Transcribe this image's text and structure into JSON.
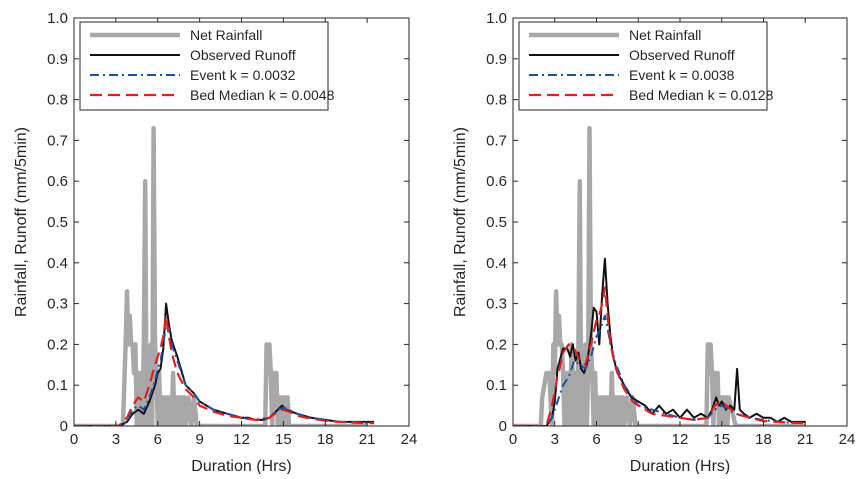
{
  "chart_data": [
    {
      "type": "line",
      "xlabel": "Duration (Hrs)",
      "ylabel": "Rainfall, Runoff (mm/5min)",
      "xlim": [
        0,
        24
      ],
      "ylim": [
        0,
        1.0
      ],
      "xticks": [
        0,
        3,
        6,
        9,
        12,
        15,
        18,
        21,
        24
      ],
      "xtick_labels": [
        "0",
        "3",
        "6",
        "9",
        "12",
        "15",
        "18",
        "21",
        "24"
      ],
      "yticks": [
        0,
        0.1,
        0.2,
        0.3,
        0.4,
        0.5,
        0.6,
        0.7,
        0.8,
        0.9,
        1.0
      ],
      "ytick_labels": [
        "0",
        "0.1",
        "0.2",
        "0.3",
        "0.4",
        "0.5",
        "0.6",
        "0.7",
        "0.8",
        "0.9",
        "1.0"
      ],
      "grid": false,
      "legend_position": "top-left",
      "series": [
        {
          "name": "Net Rainfall",
          "color": "#a8a8a8",
          "style": "solid-thick",
          "x": [
            0,
            3.5,
            3.7,
            3.8,
            3.9,
            4.0,
            4.1,
            4.2,
            4.3,
            4.4,
            4.5,
            4.6,
            4.7,
            4.8,
            4.9,
            5.0,
            5.1,
            5.2,
            5.3,
            5.4,
            5.5,
            5.6,
            5.7,
            5.8,
            5.9,
            6.0,
            6.1,
            6.2,
            6.3,
            6.4,
            6.5,
            6.6,
            6.7,
            6.8,
            6.9,
            7.0,
            7.1,
            7.2,
            7.3,
            7.4,
            7.5,
            7.6,
            7.7,
            7.8,
            7.9,
            8.0,
            8.2,
            8.4,
            8.6,
            8.8,
            13.7,
            13.8,
            13.9,
            14.0,
            14.1,
            14.2,
            14.3,
            14.4,
            14.5,
            14.6,
            14.7,
            14.8,
            14.9,
            15.0,
            15.1,
            15.2,
            15.3,
            15.4,
            15.5,
            16,
            21
          ],
          "y": [
            0,
            0,
            0.2,
            0.33,
            0.2,
            0.27,
            0.2,
            0.2,
            0.13,
            0.2,
            0,
            0.13,
            0,
            0.13,
            0,
            0.2,
            0.6,
            0,
            0.13,
            0,
            0.2,
            0,
            0.73,
            0.2,
            0.13,
            0,
            0.13,
            0,
            0.07,
            0,
            0.07,
            0,
            0.07,
            0,
            0.07,
            0,
            0.13,
            0,
            0.07,
            0,
            0.07,
            0,
            0.07,
            0,
            0.07,
            0,
            0.07,
            0,
            0.07,
            0,
            0,
            0.2,
            0.13,
            0.2,
            0.13,
            0,
            0.13,
            0.07,
            0.13,
            0,
            0.07,
            0,
            0.07,
            0,
            0.07,
            0,
            0.07,
            0,
            0,
            0,
            0
          ]
        },
        {
          "name": "Observed Runoff",
          "color": "#111111",
          "style": "solid",
          "x": [
            0,
            3.2,
            3.8,
            4.2,
            4.6,
            5.0,
            5.4,
            5.8,
            6.0,
            6.2,
            6.4,
            6.6,
            6.8,
            7.0,
            7.4,
            8.0,
            8.6,
            9.0,
            10.0,
            11.0,
            12.0,
            12.5,
            13.0,
            13.5,
            14.0,
            14.3,
            14.6,
            14.9,
            15.2,
            16.0,
            17.0,
            18.0,
            19.0,
            20.0,
            21.0,
            21.5
          ],
          "y": [
            0,
            0,
            0.01,
            0.03,
            0.04,
            0.03,
            0.06,
            0.1,
            0.13,
            0.14,
            0.19,
            0.3,
            0.25,
            0.21,
            0.17,
            0.1,
            0.08,
            0.06,
            0.04,
            0.03,
            0.02,
            0.02,
            0.015,
            0.015,
            0.02,
            0.03,
            0.04,
            0.05,
            0.04,
            0.03,
            0.02,
            0.015,
            0.01,
            0.01,
            0.01,
            0.01
          ]
        },
        {
          "name": "Event k = 0.0032",
          "color": "#1f4ea5",
          "style": "dashdot",
          "x": [
            0,
            3.2,
            3.8,
            4.2,
            4.6,
            5.0,
            5.4,
            5.8,
            6.0,
            6.2,
            6.4,
            6.6,
            6.8,
            7.0,
            7.4,
            8.0,
            8.6,
            9.0,
            10.0,
            11.0,
            12.0,
            13.0,
            14.0,
            14.6,
            15.0,
            15.4,
            16.0,
            17.0,
            18.0,
            19.0,
            20.0,
            21.0,
            21.5
          ],
          "y": [
            0,
            0,
            0.01,
            0.04,
            0.05,
            0.04,
            0.07,
            0.11,
            0.14,
            0.16,
            0.2,
            0.25,
            0.24,
            0.2,
            0.16,
            0.1,
            0.08,
            0.06,
            0.04,
            0.03,
            0.02,
            0.015,
            0.02,
            0.04,
            0.045,
            0.04,
            0.03,
            0.02,
            0.015,
            0.01,
            0.01,
            0.008,
            0.008
          ]
        },
        {
          "name": "Bed Median k = 0.0048",
          "color": "#e02020",
          "style": "dashed",
          "x": [
            0,
            3.2,
            3.8,
            4.2,
            4.6,
            5.0,
            5.4,
            5.8,
            6.0,
            6.2,
            6.4,
            6.6,
            6.8,
            7.0,
            7.4,
            8.0,
            8.6,
            9.0,
            10.0,
            11.0,
            12.0,
            13.0,
            14.0,
            14.6,
            15.0,
            15.4,
            16.0,
            17.0,
            18.0,
            19.0,
            20.0,
            21.0,
            21.5
          ],
          "y": [
            0,
            0,
            0.02,
            0.05,
            0.07,
            0.06,
            0.1,
            0.15,
            0.17,
            0.19,
            0.22,
            0.27,
            0.22,
            0.18,
            0.13,
            0.09,
            0.07,
            0.05,
            0.035,
            0.025,
            0.02,
            0.015,
            0.02,
            0.035,
            0.04,
            0.035,
            0.025,
            0.018,
            0.013,
            0.01,
            0.008,
            0.007,
            0.007
          ]
        }
      ]
    },
    {
      "type": "line",
      "xlabel": "Duration (Hrs)",
      "ylabel": "Rainfall, Runoff (mm/5min)",
      "xlim": [
        0,
        24
      ],
      "ylim": [
        0,
        1.0
      ],
      "xticks": [
        0,
        3,
        6,
        9,
        12,
        15,
        18,
        21,
        24
      ],
      "xtick_labels": [
        "0",
        "3",
        "6",
        "9",
        "12",
        "15",
        "18",
        "21",
        "24"
      ],
      "yticks": [
        0,
        0.1,
        0.2,
        0.3,
        0.4,
        0.5,
        0.6,
        0.7,
        0.8,
        0.9,
        1.0
      ],
      "ytick_labels": [
        "0",
        "0.1",
        "0.2",
        "0.3",
        "0.4",
        "0.5",
        "0.6",
        "0.7",
        "0.8",
        "0.9",
        "1.0"
      ],
      "grid": false,
      "legend_position": "top-left",
      "series": [
        {
          "name": "Net Rainfall",
          "color": "#a8a8a8",
          "style": "solid-thick",
          "x": [
            0,
            2.0,
            2.1,
            2.4,
            2.6,
            2.8,
            2.9,
            3.0,
            3.1,
            3.2,
            3.3,
            3.4,
            3.5,
            3.6,
            3.7,
            3.8,
            3.9,
            4.0,
            4.1,
            4.2,
            4.3,
            4.4,
            4.5,
            4.6,
            4.7,
            4.8,
            4.9,
            5.0,
            5.1,
            5.2,
            5.3,
            5.4,
            5.5,
            5.6,
            5.7,
            5.8,
            5.9,
            6.0,
            6.1,
            6.2,
            6.3,
            6.4,
            6.5,
            6.6,
            6.7,
            6.8,
            6.9,
            7.0,
            7.1,
            7.2,
            7.3,
            7.4,
            7.5,
            7.6,
            7.7,
            7.8,
            7.9,
            8.0,
            8.2,
            8.4,
            8.6,
            8.8,
            13.9,
            14.0,
            14.1,
            14.2,
            14.3,
            14.4,
            14.5,
            14.6,
            14.7,
            14.8,
            14.9,
            15.0,
            15.1,
            15.2,
            15.3,
            15.4,
            15.5,
            16,
            21
          ],
          "y": [
            0,
            0,
            0.07,
            0.13,
            0.13,
            0,
            0.2,
            0.13,
            0.33,
            0.2,
            0.27,
            0.2,
            0.2,
            0.13,
            0,
            0.13,
            0,
            0.13,
            0,
            0.2,
            0.13,
            0,
            0.13,
            0,
            0.2,
            0.6,
            0,
            0.13,
            0,
            0.2,
            0,
            0.13,
            0.73,
            0.2,
            0.13,
            0,
            0.13,
            0,
            0.07,
            0,
            0.07,
            0,
            0.07,
            0,
            0.07,
            0,
            0.07,
            0,
            0.13,
            0,
            0.07,
            0,
            0.07,
            0,
            0.07,
            0,
            0.07,
            0,
            0.07,
            0,
            0.07,
            0,
            0,
            0.2,
            0.13,
            0.2,
            0.13,
            0,
            0.13,
            0.07,
            0.13,
            0,
            0.07,
            0,
            0.07,
            0,
            0.07,
            0,
            0.07,
            0,
            0
          ]
        },
        {
          "name": "Observed Runoff",
          "color": "#111111",
          "style": "solid",
          "x": [
            0,
            2.4,
            2.8,
            3.0,
            3.2,
            3.6,
            3.9,
            4.1,
            4.3,
            4.5,
            4.7,
            4.9,
            5.1,
            5.3,
            5.6,
            5.8,
            6.0,
            6.2,
            6.4,
            6.6,
            6.8,
            7.0,
            7.2,
            7.5,
            8.0,
            8.5,
            9.0,
            9.5,
            10.0,
            10.5,
            11.0,
            11.5,
            12.0,
            12.5,
            13.0,
            13.5,
            14.0,
            14.3,
            14.6,
            14.8,
            15.0,
            15.3,
            15.6,
            15.9,
            16.1,
            16.3,
            16.6,
            17.0,
            17.5,
            18.0,
            18.5,
            19.0,
            19.5,
            20.0,
            20.5,
            21.0
          ],
          "y": [
            0,
            0,
            0.02,
            0.06,
            0.14,
            0.19,
            0.19,
            0.17,
            0.2,
            0.16,
            0.18,
            0.14,
            0.13,
            0.15,
            0.22,
            0.29,
            0.28,
            0.2,
            0.32,
            0.41,
            0.3,
            0.22,
            0.17,
            0.13,
            0.1,
            0.07,
            0.06,
            0.05,
            0.03,
            0.05,
            0.03,
            0.04,
            0.02,
            0.04,
            0.02,
            0.03,
            0.02,
            0.04,
            0.07,
            0.05,
            0.06,
            0.04,
            0.05,
            0.04,
            0.14,
            0.04,
            0.03,
            0.02,
            0.03,
            0.02,
            0.02,
            0.01,
            0.02,
            0.01,
            0.01,
            0.01
          ]
        },
        {
          "name": "Event k = 0.0038",
          "color": "#1f4ea5",
          "style": "dashdot",
          "x": [
            0,
            2.4,
            2.8,
            3.2,
            3.6,
            4.0,
            4.4,
            4.8,
            5.2,
            5.6,
            6.0,
            6.2,
            6.4,
            6.6,
            6.8,
            7.0,
            7.4,
            8.0,
            8.6,
            9.0,
            10.0,
            11.0,
            12.0,
            13.0,
            14.0,
            14.5,
            15.0,
            15.5,
            16.0,
            17.0,
            18.0,
            19.0,
            20.0,
            21.0
          ],
          "y": [
            0,
            0,
            0.02,
            0.06,
            0.1,
            0.12,
            0.16,
            0.15,
            0.14,
            0.17,
            0.22,
            0.23,
            0.25,
            0.27,
            0.24,
            0.2,
            0.15,
            0.1,
            0.07,
            0.05,
            0.04,
            0.03,
            0.02,
            0.015,
            0.02,
            0.04,
            0.05,
            0.04,
            0.03,
            0.02,
            0.015,
            0.01,
            0.008,
            0.007
          ]
        },
        {
          "name": "Bed Median k = 0.0128",
          "color": "#e02020",
          "style": "dashed",
          "x": [
            0,
            2.4,
            2.8,
            3.2,
            3.6,
            4.0,
            4.4,
            4.8,
            5.2,
            5.6,
            6.0,
            6.2,
            6.4,
            6.6,
            6.8,
            7.0,
            7.4,
            8.0,
            8.6,
            9.0,
            10.0,
            11.0,
            12.0,
            13.0,
            14.0,
            14.5,
            15.0,
            15.5,
            16.0,
            17.0,
            18.0,
            19.0,
            20.0,
            21.0
          ],
          "y": [
            0,
            0,
            0.05,
            0.12,
            0.18,
            0.2,
            0.19,
            0.16,
            0.15,
            0.2,
            0.26,
            0.27,
            0.3,
            0.34,
            0.27,
            0.2,
            0.14,
            0.09,
            0.06,
            0.05,
            0.03,
            0.025,
            0.02,
            0.015,
            0.02,
            0.05,
            0.06,
            0.045,
            0.03,
            0.02,
            0.012,
            0.01,
            0.008,
            0.007
          ]
        }
      ]
    }
  ]
}
